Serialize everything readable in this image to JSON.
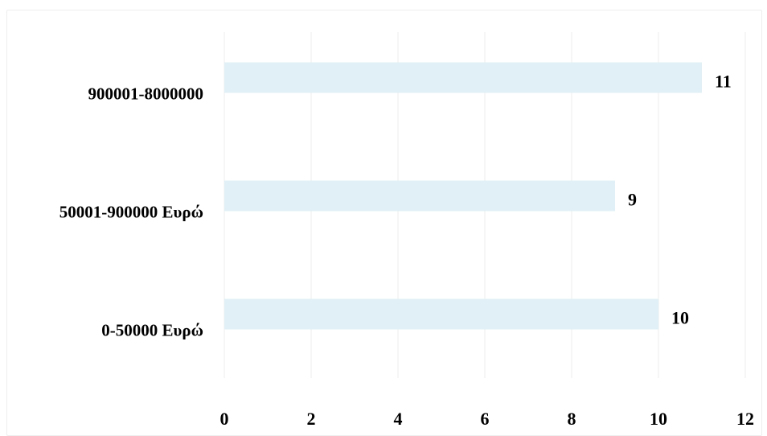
{
  "chart_data": {
    "type": "bar",
    "orientation": "horizontal",
    "categories": [
      "900001-8000000",
      "50001-900000 Ευρώ",
      "0-50000 Ευρώ"
    ],
    "values": [
      11,
      9,
      10
    ],
    "xlim": [
      0,
      12
    ],
    "x_ticks": [
      0,
      2,
      4,
      6,
      8,
      10,
      12
    ],
    "x_tick_labels": [
      "0",
      "2",
      "4",
      "6",
      "8",
      "10",
      "12"
    ],
    "data_labels": [
      "11",
      "9",
      "10"
    ],
    "grid": "vertical",
    "legend": "none",
    "bar_color": "#e1f0f6",
    "grid_color": "#ececec",
    "title": "",
    "xlabel": "",
    "ylabel": ""
  }
}
